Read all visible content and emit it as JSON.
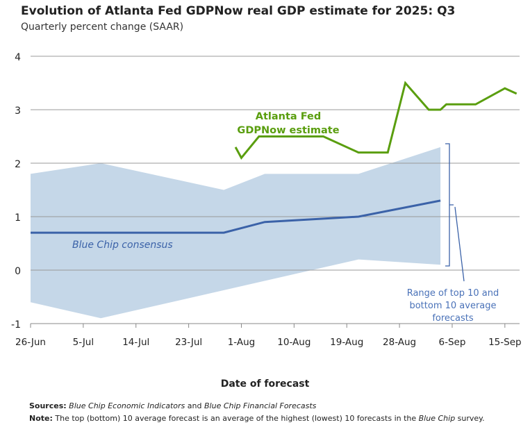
{
  "chart_data": {
    "type": "line",
    "title": "Evolution of Atlanta Fed GDPNow real GDP estimate for 2025: Q3",
    "subtitle": "Quarterly percent change (SAAR)",
    "xlabel": "Date of forecast",
    "ylabel": "",
    "ylim": [
      -1,
      4
    ],
    "yticks": [
      "4",
      "3",
      "2",
      "1",
      "0",
      "-1"
    ],
    "xticks": [
      "26-Jun",
      "5-Jul",
      "14-Jul",
      "23-Jul",
      "1-Aug",
      "10-Aug",
      "19-Aug",
      "28-Aug",
      "6-Sep",
      "15-Sep"
    ],
    "grid": true,
    "series": [
      {
        "name": "Atlanta Fed GDPNow estimate",
        "color": "#5a9e0f",
        "x": [
          "31-Jul",
          "1-Aug",
          "4-Aug",
          "15-Aug",
          "21-Aug",
          "26-Aug",
          "29-Aug",
          "2-Sep",
          "4-Sep",
          "5-Sep",
          "10-Sep",
          "15-Sep",
          "17-Sep"
        ],
        "values": [
          2.3,
          2.1,
          2.5,
          2.5,
          2.2,
          2.2,
          3.5,
          3.0,
          3.0,
          3.1,
          3.1,
          3.4,
          3.3
        ]
      },
      {
        "name": "Blue Chip consensus",
        "color": "#3b62a8",
        "x": [
          "26-Jun",
          "29-Jul",
          "5-Aug",
          "21-Aug",
          "4-Sep"
        ],
        "values": [
          0.7,
          0.7,
          0.9,
          1.0,
          1.3
        ]
      }
    ],
    "band": {
      "name": "Range of top 10 and bottom 10 average forecasts",
      "color": "#c5d7e8",
      "upper": {
        "x": [
          "26-Jun",
          "8-Jul",
          "29-Jul",
          "5-Aug",
          "21-Aug",
          "4-Sep"
        ],
        "values": [
          1.8,
          2.0,
          1.5,
          1.8,
          1.8,
          2.3
        ]
      },
      "lower": {
        "x": [
          "26-Jun",
          "8-Jul",
          "21-Aug",
          "4-Sep"
        ],
        "values": [
          -0.6,
          -0.9,
          0.2,
          0.1
        ]
      }
    },
    "annotations": {
      "gdpnow_line1": "Atlanta Fed",
      "gdpnow_line2": "GDPNow estimate",
      "bluechip": "Blue Chip consensus",
      "range_line1": "Range of top 10 and",
      "range_line2": "bottom 10 average",
      "range_line3": "forecasts"
    }
  },
  "footer": {
    "sources_label": "Sources:",
    "sources_italic1": "Blue Chip Economic Indicators",
    "sources_and": " and ",
    "sources_italic2": "Blue Chip Financial Forecasts",
    "note_label": "Note:",
    "note_text": " The top (bottom) 10 average forecast is an average of the highest (lowest) 10 forecasts in the ",
    "note_italic": "Blue Chip",
    "note_end": " survey."
  }
}
